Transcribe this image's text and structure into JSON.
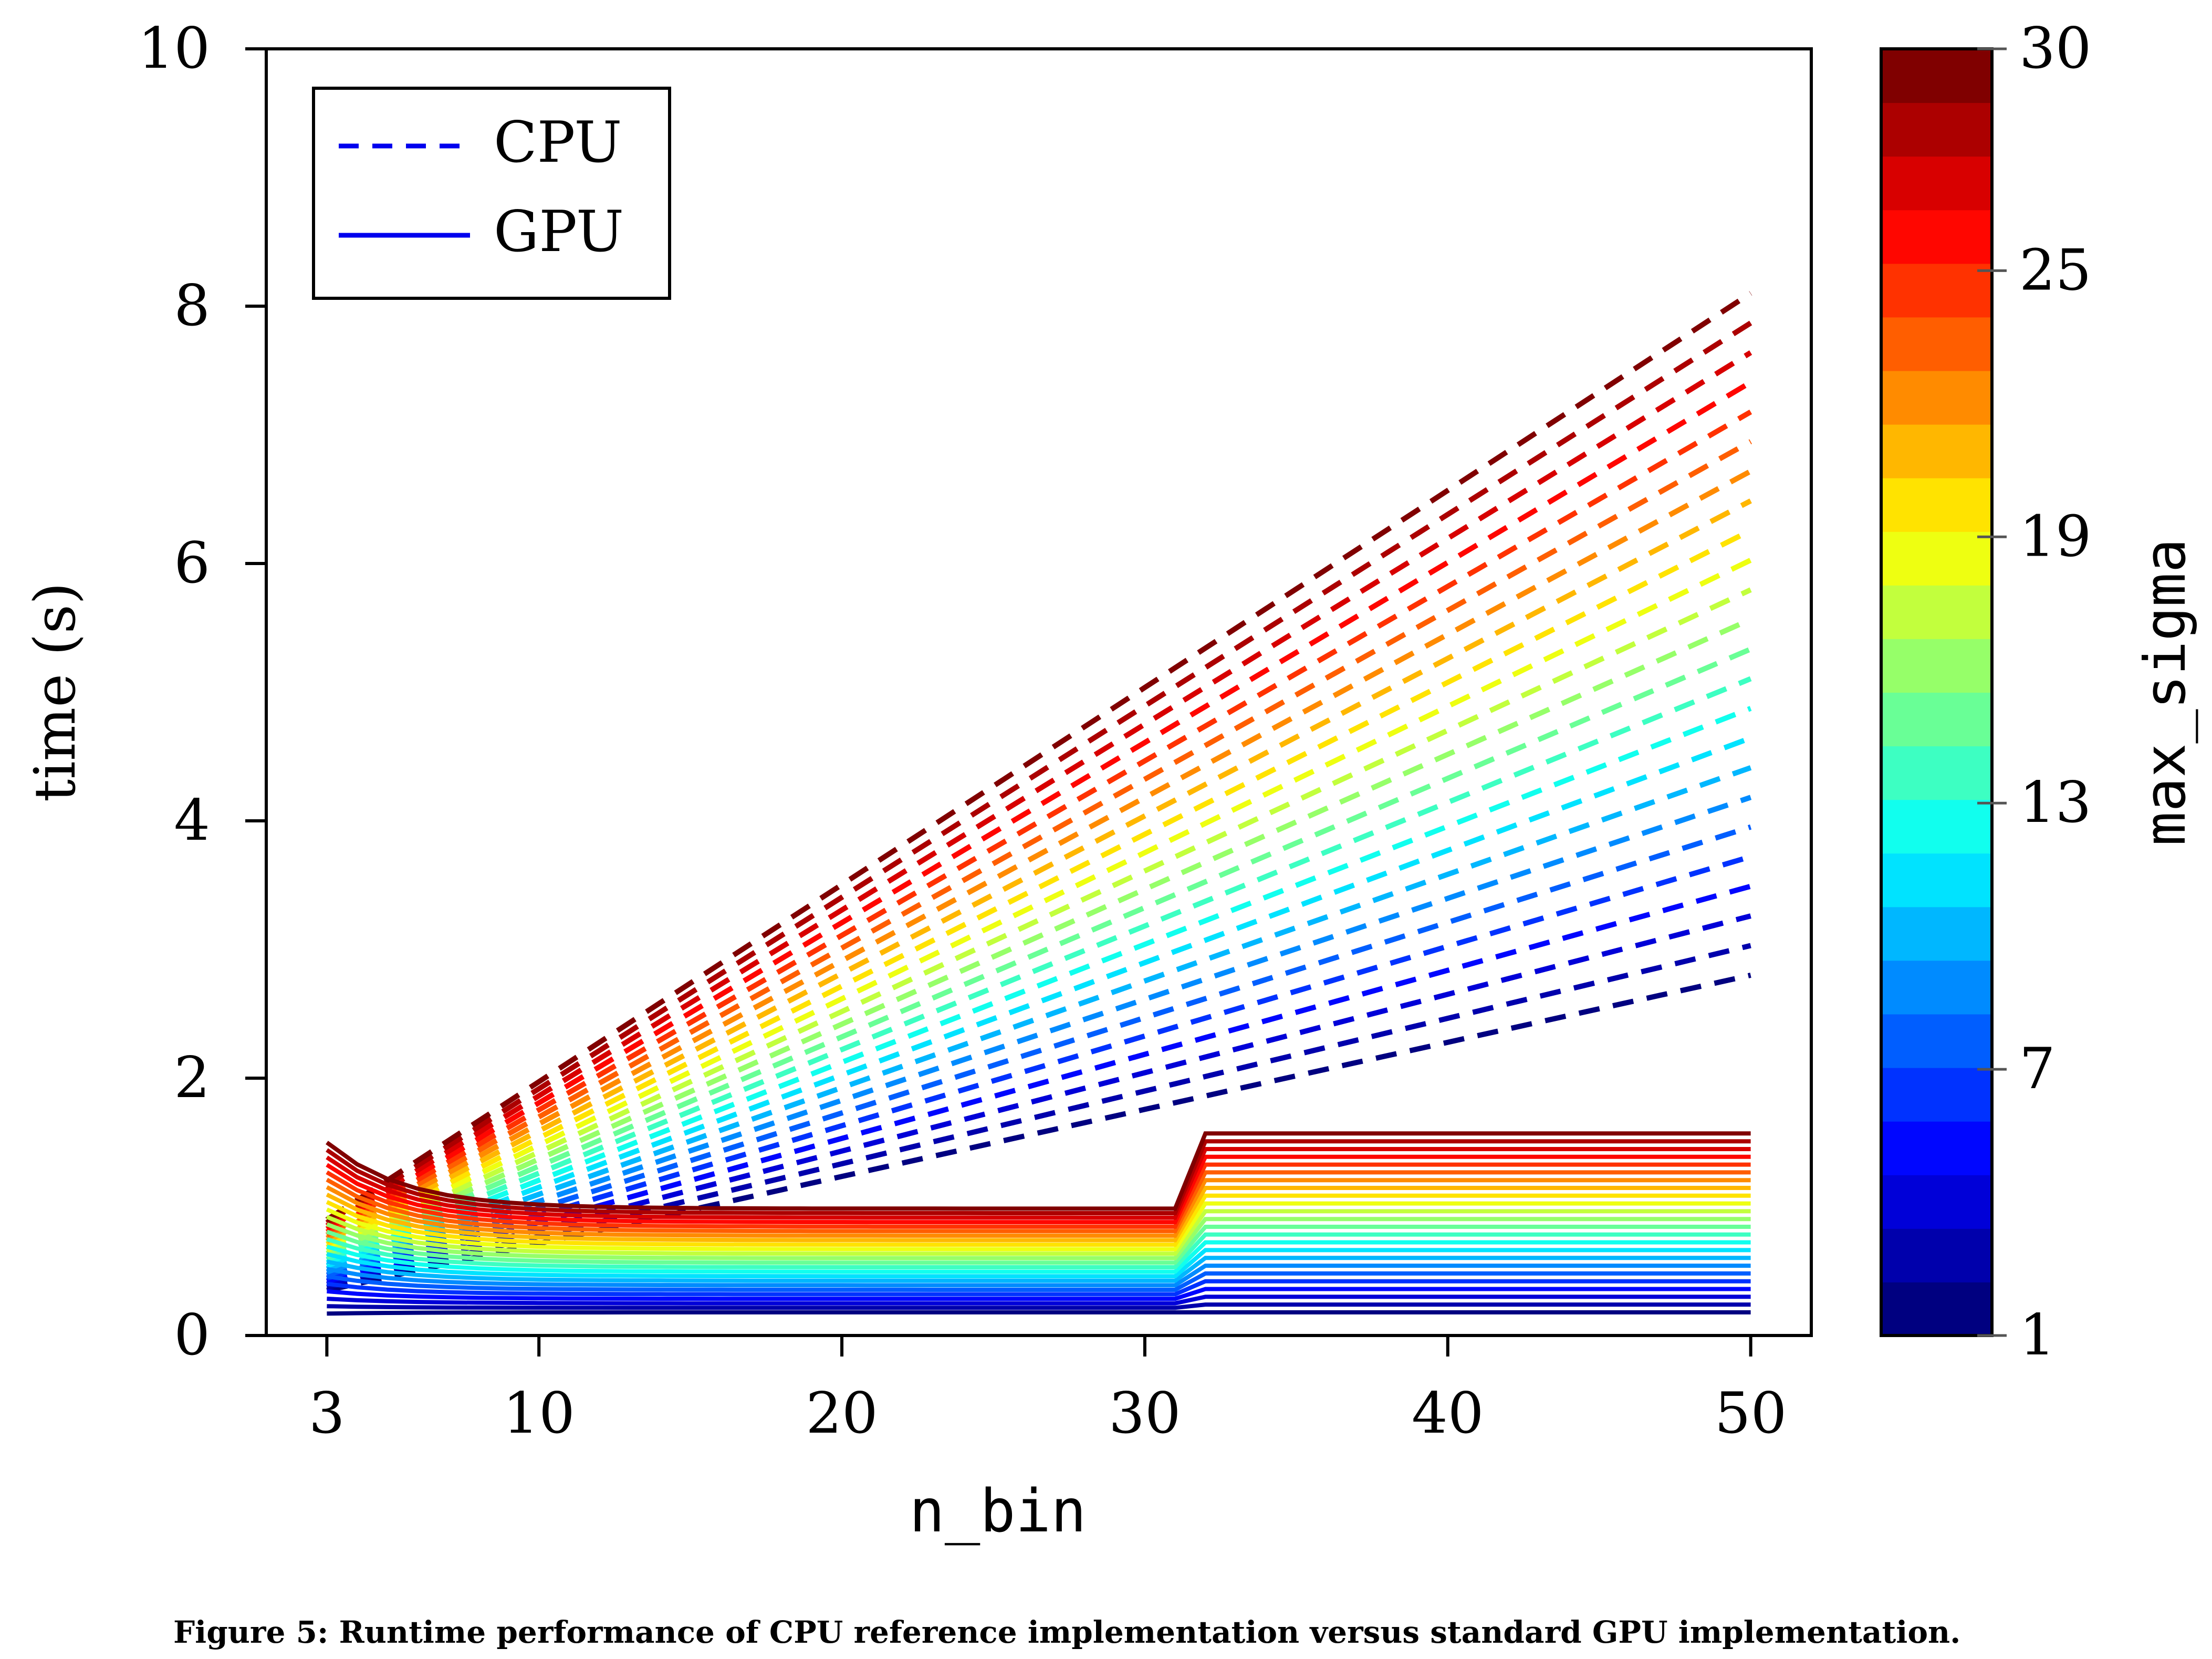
{
  "chart_data": {
    "type": "line",
    "xlabel": "n_bin",
    "ylabel": "time (s)",
    "xlim": [
      1,
      52
    ],
    "ylim": [
      0,
      10
    ],
    "x_ticks": [
      3,
      10,
      20,
      30,
      40,
      50
    ],
    "x_tick_labels": [
      "3",
      "10",
      "20",
      "30",
      "40",
      "50"
    ],
    "y_ticks": [
      0,
      2,
      4,
      6,
      8,
      10
    ],
    "y_tick_labels": [
      "0",
      "2",
      "4",
      "6",
      "8",
      "10"
    ],
    "legend": {
      "position": "top-left",
      "entries": [
        {
          "label": "CPU",
          "style": "dashed",
          "color": "#0000ee"
        },
        {
          "label": "GPU",
          "style": "solid",
          "color": "#0000ee"
        }
      ]
    },
    "colorbar": {
      "label": "max_sigma",
      "range": [
        1,
        30
      ],
      "tick_values": [
        1,
        7,
        13,
        19,
        25,
        30
      ],
      "tick_labels": [
        "1",
        "7",
        "13",
        "19",
        "25",
        "30"
      ],
      "colormap": "jet",
      "levels": 24
    },
    "x": [
      3,
      50
    ],
    "series": [
      {
        "group": "CPU",
        "style": "dashed",
        "max_sigma": 1,
        "y": [
          0.35,
          2.8
        ]
      },
      {
        "group": "CPU",
        "style": "dashed",
        "max_sigma": 30,
        "y": [
          0.9,
          8.1
        ]
      },
      {
        "group": "GPU",
        "style": "solid",
        "max_sigma": 1,
        "y": [
          0.17,
          0.18
        ]
      },
      {
        "group": "GPU",
        "style": "solid",
        "max_sigma": 30,
        "y": [
          1.5,
          1.57
        ]
      }
    ],
    "gpu_step_at_n_bin": 32
  },
  "caption": "Figure 5: Runtime performance of CPU reference implementation versus standard GPU implementation."
}
